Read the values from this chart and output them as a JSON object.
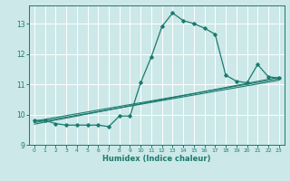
{
  "xlabel": "Humidex (Indice chaleur)",
  "ylabel": "",
  "bg_color": "#cce8e8",
  "grid_color": "#ffffff",
  "line_color": "#1a7a6e",
  "xlim": [
    -0.5,
    23.5
  ],
  "ylim": [
    9,
    13.6
  ],
  "yticks": [
    9,
    10,
    11,
    12,
    13
  ],
  "xticks": [
    0,
    1,
    2,
    3,
    4,
    5,
    6,
    7,
    8,
    9,
    10,
    11,
    12,
    13,
    14,
    15,
    16,
    17,
    18,
    19,
    20,
    21,
    22,
    23
  ],
  "main_curve_x": [
    0,
    1,
    2,
    3,
    4,
    5,
    6,
    7,
    8,
    9,
    10,
    11,
    12,
    13,
    14,
    15,
    16,
    17,
    18,
    19,
    20,
    21,
    22,
    23
  ],
  "main_curve_y": [
    9.8,
    9.8,
    9.7,
    9.65,
    9.65,
    9.65,
    9.65,
    9.6,
    9.95,
    9.95,
    11.05,
    11.9,
    12.9,
    13.35,
    13.1,
    13.0,
    12.85,
    12.65,
    11.3,
    11.1,
    11.05,
    11.65,
    11.25,
    11.2
  ],
  "line1_x": [
    0,
    23
  ],
  "line1_y": [
    9.78,
    11.18
  ],
  "line2_x": [
    0,
    23
  ],
  "line2_y": [
    9.73,
    11.13
  ],
  "line3_x": [
    0,
    23
  ],
  "line3_y": [
    9.68,
    11.23
  ]
}
